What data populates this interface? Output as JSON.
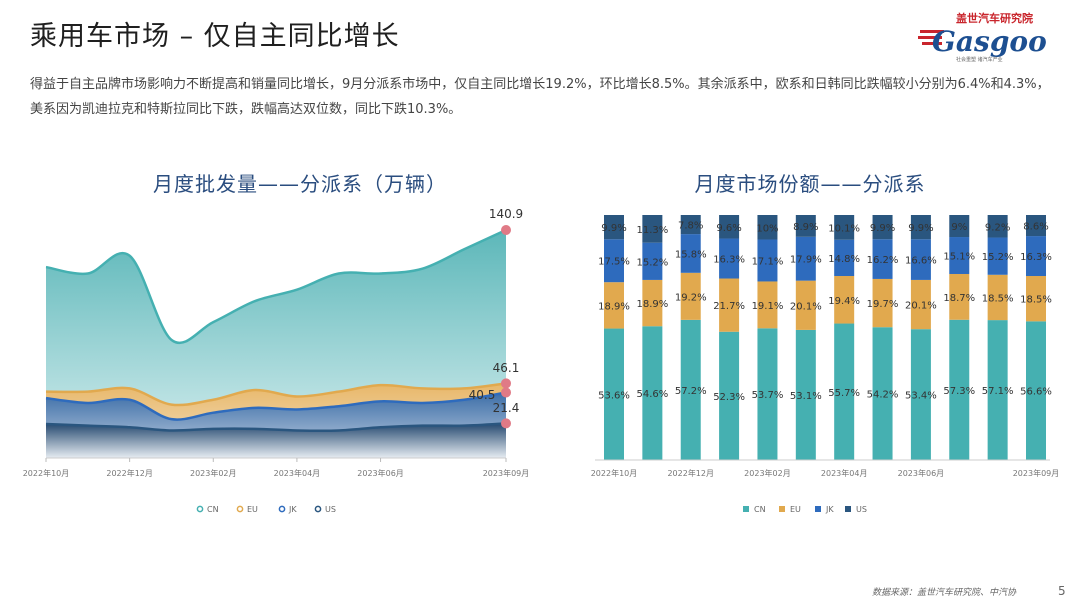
{
  "page": {
    "title": "乘用车市场 – 仅自主同比增长",
    "description": "得益于自主品牌市场影响力不断提高和销量同比增长，9月分派系市场中，仅自主同比增长19.2%，环比增长8.5%。其余派系中，欧系和日韩同比跌幅较小分别为6.4%和4.3%，美系因为凯迪拉克和特斯拉同比下跌，跌幅高达双位数，同比下跌10.3%。",
    "logo_cn": "盖世汽车研究院",
    "logo_en": "Gasgoo",
    "logo_tagline": "社会重塑 诸汽车产业",
    "source": "数据来源：盖世汽车研究院、中汽协",
    "page_number": "5"
  },
  "colors": {
    "CN": "#45b0b1",
    "EU": "#e1a94e",
    "JK": "#2e6bbd",
    "US": "#2a567f",
    "title_blue": "#2a4d7f",
    "marker": "#e07a86"
  },
  "chart_data": [
    {
      "type": "area",
      "title": "月度批发量——分派系（万辆）",
      "x_ticks": [
        "2022年10月",
        "2022年12月",
        "2023年02月",
        "2023年04月",
        "2023年06月",
        "2023年09月"
      ],
      "x": [
        "2022-10",
        "2022-11",
        "2022-12",
        "2023-01",
        "2023-02",
        "2023-03",
        "2023-04",
        "2023-05",
        "2023-06",
        "2023-07",
        "2023-08",
        "2023-09"
      ],
      "series": [
        {
          "name": "CN",
          "values": [
            118,
            114,
            125,
            73,
            84,
            97,
            104,
            114,
            114,
            117,
            129,
            140.9
          ]
        },
        {
          "name": "EU",
          "values": [
            41,
            41,
            43,
            33,
            36,
            42,
            38,
            41,
            45,
            43,
            43,
            46.1
          ]
        },
        {
          "name": "JK",
          "values": [
            37,
            34,
            36,
            24,
            28,
            31,
            30,
            32,
            35,
            34,
            36,
            40.5
          ]
        },
        {
          "name": "US",
          "values": [
            21,
            20,
            19,
            17,
            18,
            18,
            17,
            17,
            19,
            20,
            20,
            21.4
          ]
        }
      ],
      "end_labels": {
        "CN": "140.9",
        "EU": "46.1",
        "JK": "40.5",
        "US": "21.4"
      },
      "legend": [
        "CN",
        "EU",
        "JK",
        "US"
      ],
      "legend_position": "bottom"
    },
    {
      "type": "bar",
      "stacked": true,
      "percent": true,
      "title": "月度市场份额——分派系",
      "x_ticks": [
        "2022年10月",
        "2022年12月",
        "2023年02月",
        "2023年04月",
        "2023年06月",
        "2023年09月"
      ],
      "categories": [
        "2022-10",
        "2022-11",
        "2022-12",
        "2023-01",
        "2023-02",
        "2023-03",
        "2023-04",
        "2023-05",
        "2023-06",
        "2023-07",
        "2023-08",
        "2023-09"
      ],
      "series": [
        {
          "name": "CN",
          "values": [
            53.6,
            54.6,
            57.2,
            52.3,
            53.7,
            53.1,
            55.7,
            54.2,
            53.4,
            57.3,
            57.1,
            56.6
          ],
          "labels": [
            "53.6%",
            "54.6%",
            "57.2%",
            "52.3%",
            "53.7%",
            "53.1%",
            "55.7%",
            "54.2%",
            "53.4%",
            "57.3%",
            "57.1%",
            "56.6%"
          ]
        },
        {
          "name": "EU",
          "values": [
            18.9,
            18.9,
            19.2,
            21.7,
            19.1,
            20.1,
            19.4,
            19.7,
            20.1,
            18.7,
            18.5,
            18.5
          ],
          "labels": [
            "18.9%",
            "18.9%",
            "19.2%",
            "21.7%",
            "19.1%",
            "20.1%",
            "19.4%",
            "19.7%",
            "20.1%",
            "18.7%",
            "18.5%",
            "18.5%"
          ]
        },
        {
          "name": "JK",
          "values": [
            17.5,
            15.2,
            15.8,
            16.3,
            17.1,
            17.9,
            14.8,
            16.2,
            16.6,
            15.1,
            15.2,
            16.3
          ],
          "labels": [
            "17.5%",
            "15.2%",
            "15.8%",
            "16.3%",
            "17.1%",
            "17.9%",
            "14.8%",
            "16.2%",
            "16.6%",
            "15.1%",
            "15.2%",
            "16.3%"
          ]
        },
        {
          "name": "US",
          "values": [
            9.9,
            11.3,
            7.8,
            9.6,
            10,
            8.9,
            10.1,
            9.9,
            9.9,
            9,
            9.2,
            8.6
          ],
          "labels": [
            "9.9%",
            "11.3%",
            "7.8%",
            "9.6%",
            "10%",
            "8.9%",
            "10.1%",
            "9.9%",
            "9.9%",
            "9%",
            "9.2%",
            "8.6%"
          ]
        }
      ],
      "legend": [
        "CN",
        "EU",
        "JK",
        "US"
      ],
      "legend_position": "bottom"
    }
  ]
}
